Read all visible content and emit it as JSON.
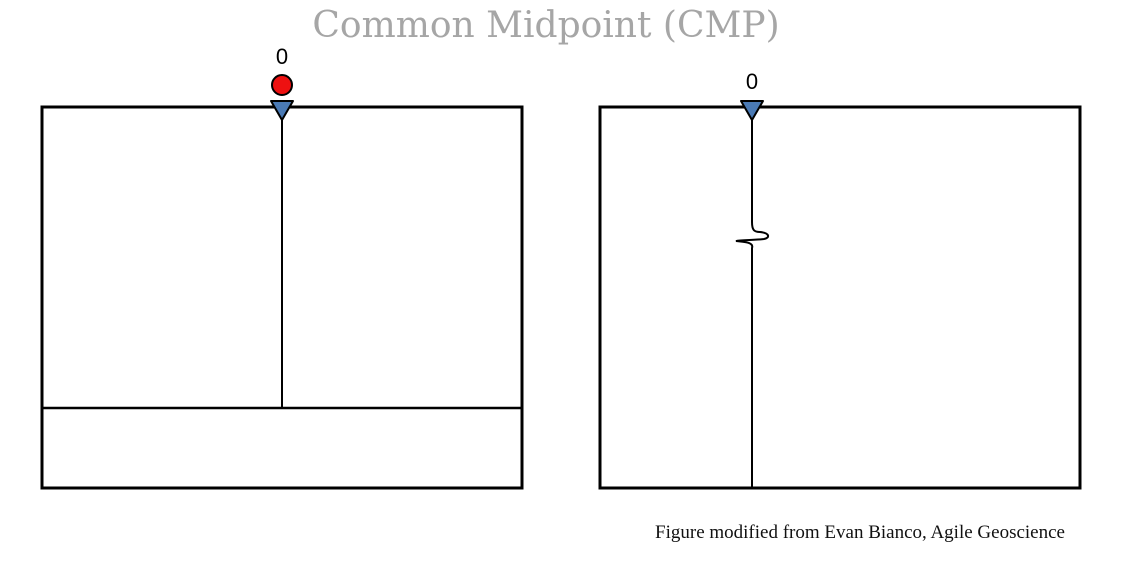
{
  "figure": {
    "title": "Common Midpoint (CMP)",
    "credit": "Figure modified from Evan Bianco, Agile Geoscience"
  },
  "left_panel": {
    "offset_label": "0",
    "source_color": "#ee1111",
    "receiver_color": "#4a7ab5"
  },
  "right_panel": {
    "offset_label": "0",
    "receiver_color": "#4a7ab5"
  },
  "colors": {
    "title": "#a6a6a6",
    "lines": "#000000",
    "background": "#ffffff"
  }
}
